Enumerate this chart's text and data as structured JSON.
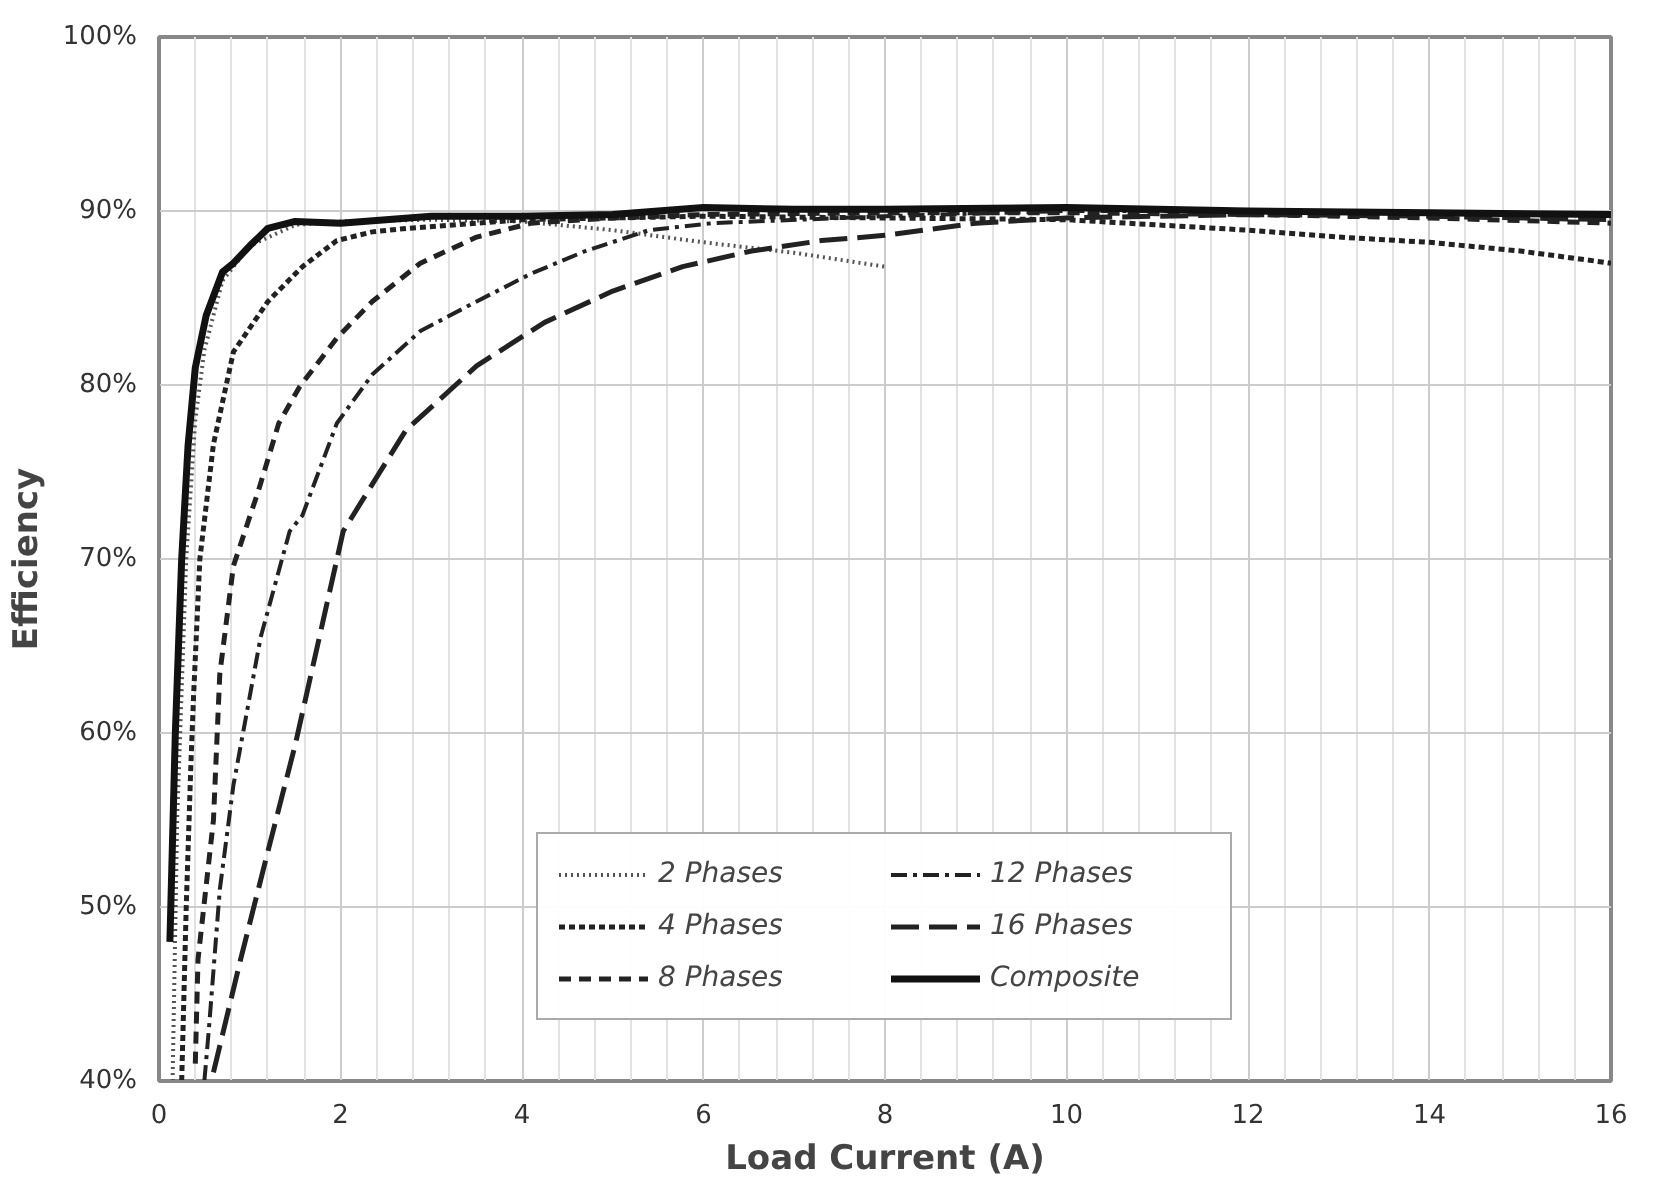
{
  "chart_data": {
    "type": "line",
    "xlabel": "Load Current (A)",
    "ylabel": "Efficiency",
    "xlim": [
      0,
      16
    ],
    "ylim": [
      40,
      100
    ],
    "xticks": [
      0,
      2,
      4,
      6,
      8,
      10,
      12,
      14,
      16
    ],
    "yticks": [
      {
        "value": 40,
        "label": "40%"
      },
      {
        "value": 50,
        "label": "50%"
      },
      {
        "value": 60,
        "label": "60%"
      },
      {
        "value": 70,
        "label": "70%"
      },
      {
        "value": 80,
        "label": "80%"
      },
      {
        "value": 90,
        "label": "90%"
      },
      {
        "value": 100,
        "label": "100%"
      }
    ],
    "grid": true,
    "legend": "bottom",
    "series": [
      {
        "name": "2 Phases",
        "color": "#555555",
        "line_style": "dotted",
        "x": [
          0.15,
          0.2,
          0.3,
          0.4,
          0.5,
          0.7,
          1,
          1.5,
          2,
          3,
          4,
          5,
          6,
          7,
          8
        ],
        "values": [
          40,
          55,
          70,
          78,
          82,
          86,
          88,
          89.2,
          89.4,
          89.5,
          89.4,
          88.9,
          88.2,
          87.6,
          86.8
        ]
      },
      {
        "name": "4 Phases",
        "color": "#222222",
        "line_style": "short_dashed",
        "x": [
          0.25,
          0.3,
          0.35,
          0.38,
          0.45,
          0.6,
          0.82,
          1.2,
          1.58,
          1.96,
          2.35,
          2.73,
          4,
          6,
          8,
          10,
          11,
          12,
          13,
          14,
          15,
          16
        ],
        "values": [
          40,
          50,
          58,
          62,
          70,
          76.6,
          81.9,
          84.8,
          86.8,
          88.3,
          88.8,
          89,
          89.5,
          89.7,
          89.6,
          89.5,
          89.2,
          88.9,
          88.5,
          88.2,
          87.7,
          87
        ]
      },
      {
        "name": "8 Phases",
        "color": "#222222",
        "line_style": "dashed",
        "x": [
          0.4,
          0.43,
          0.6,
          0.67,
          0.82,
          1.1,
          1.32,
          1.55,
          1.96,
          2.35,
          2.88,
          3.5,
          4.1,
          5,
          6,
          8,
          10,
          12,
          14,
          16
        ],
        "values": [
          41,
          47,
          55,
          63.4,
          69.6,
          74,
          77.8,
          79.9,
          82.7,
          84.8,
          87,
          88.5,
          89.3,
          89.6,
          89.8,
          89.9,
          89.9,
          89.8,
          89.6,
          89.3
        ]
      },
      {
        "name": "12 Phases",
        "color": "#222222",
        "line_style": "dashdot",
        "x": [
          0.5,
          0.55,
          0.67,
          0.82,
          1.12,
          1.44,
          1.58,
          1.96,
          2.35,
          2.88,
          3.5,
          4.1,
          4.7,
          5.4,
          6.1,
          8,
          10,
          12,
          14,
          16
        ],
        "values": [
          40,
          43,
          51,
          57,
          65.5,
          71.6,
          72.5,
          77.8,
          80.6,
          83.1,
          84.8,
          86.4,
          87.7,
          88.9,
          89.3,
          89.7,
          90,
          90,
          89.9,
          89.8
        ]
      },
      {
        "name": "16 Phases",
        "color": "#222222",
        "line_style": "long_dashed",
        "x": [
          0.6,
          0.9,
          1.2,
          1.5,
          2.03,
          2.72,
          3.5,
          4.25,
          5,
          5.77,
          6.53,
          7.3,
          8,
          9,
          10,
          12,
          14,
          16
        ],
        "values": [
          40.5,
          47,
          53.2,
          59.3,
          71.6,
          77.4,
          81.1,
          83.6,
          85.4,
          86.8,
          87.7,
          88.3,
          88.6,
          89.3,
          89.6,
          89.8,
          89.7,
          89.5
        ]
      },
      {
        "name": "Composite",
        "color": "#111111",
        "line_style": "solid",
        "x": [
          0.12,
          0.18,
          0.25,
          0.32,
          0.4,
          0.52,
          0.7,
          0.82,
          1,
          1.2,
          1.5,
          2,
          2.5,
          3,
          4,
          5,
          6,
          7,
          8,
          10,
          12,
          14,
          16
        ],
        "values": [
          48,
          60,
          70,
          76.5,
          81,
          84,
          86.5,
          87,
          88,
          89,
          89.4,
          89.3,
          89.5,
          89.7,
          89.7,
          89.8,
          90.2,
          90.1,
          90.1,
          90.2,
          90,
          89.9,
          89.8
        ]
      }
    ]
  }
}
